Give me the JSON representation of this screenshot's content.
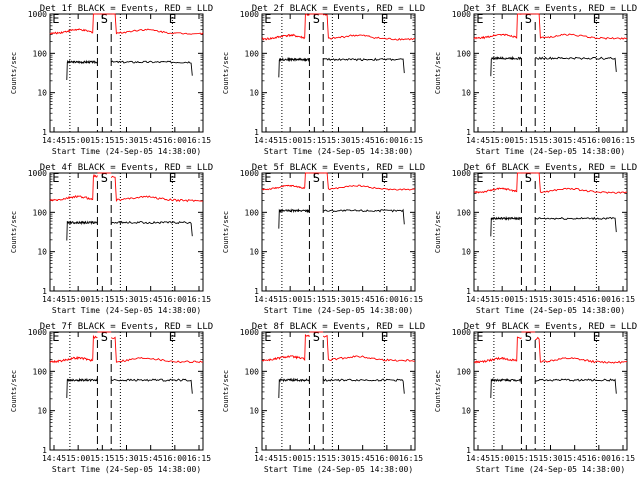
{
  "chart_data": [
    {
      "type": "line",
      "title": "Det 1f BLACK = Events, RED = LLD",
      "ylabel": "Counts/sec",
      "xlabel": "Start Time (24-Sep-05 14:38:00)",
      "yscale": "log",
      "ylim": [
        1,
        1000
      ],
      "yticks": [
        "1",
        "10",
        "100",
        "1000"
      ],
      "xticks": [
        "14:45",
        "15:00",
        "15:15",
        "15:30",
        "15:45",
        "16:00",
        "16:15"
      ],
      "markers": {
        "start": "S",
        "end": "E"
      },
      "series": [
        {
          "name": "Events",
          "color": "#000000",
          "baseline": 60,
          "jitter": 0.06
        },
        {
          "name": "LLD",
          "color": "#ff0000",
          "baseline": 320,
          "jitter": 0.05
        }
      ]
    },
    {
      "type": "line",
      "title": "Det 2f BLACK = Events, RED = LLD",
      "ylabel": "Counts/sec",
      "xlabel": "Start Time (24-Sep-05 14:38:00)",
      "yscale": "log",
      "ylim": [
        1,
        1000
      ],
      "yticks": [
        "1",
        "10",
        "100",
        "1000"
      ],
      "xticks": [
        "14:45",
        "15:00",
        "15:15",
        "15:30",
        "15:45",
        "16:00",
        "16:15"
      ],
      "markers": {
        "start": "S",
        "end": "E"
      },
      "series": [
        {
          "name": "Events",
          "color": "#000000",
          "baseline": 70,
          "jitter": 0.06
        },
        {
          "name": "LLD",
          "color": "#ff0000",
          "baseline": 230,
          "jitter": 0.06
        }
      ]
    },
    {
      "type": "line",
      "title": "Det 3f BLACK = Events, RED = LLD",
      "ylabel": "Counts/sec",
      "xlabel": "Start Time (24-Sep-05 14:38:00)",
      "yscale": "log",
      "ylim": [
        1,
        1000
      ],
      "yticks": [
        "1",
        "10",
        "100",
        "1000"
      ],
      "xticks": [
        "14:45",
        "15:00",
        "15:15",
        "15:30",
        "15:45",
        "16:00",
        "16:15"
      ],
      "markers": {
        "start": "S",
        "end": "E"
      },
      "series": [
        {
          "name": "Events",
          "color": "#000000",
          "baseline": 75,
          "jitter": 0.06
        },
        {
          "name": "LLD",
          "color": "#ff0000",
          "baseline": 240,
          "jitter": 0.05
        }
      ]
    },
    {
      "type": "line",
      "title": "Det 4f BLACK = Events, RED = LLD",
      "ylabel": "Counts/sec",
      "xlabel": "Start Time (24-Sep-05 14:38:00)",
      "yscale": "log",
      "ylim": [
        1,
        1000
      ],
      "yticks": [
        "1",
        "10",
        "100",
        "1000"
      ],
      "xticks": [
        "14:45",
        "15:00",
        "15:15",
        "15:30",
        "15:45",
        "16:00",
        "16:15"
      ],
      "markers": {
        "start": "S",
        "end": "E"
      },
      "series": [
        {
          "name": "Events",
          "color": "#000000",
          "baseline": 55,
          "jitter": 0.06
        },
        {
          "name": "LLD",
          "color": "#ff0000",
          "baseline": 200,
          "jitter": 0.06
        }
      ]
    },
    {
      "type": "line",
      "title": "Det 5f BLACK = Events, RED = LLD",
      "ylabel": "Counts/sec",
      "xlabel": "Start Time (24-Sep-05 14:38:00)",
      "yscale": "log",
      "ylim": [
        1,
        1000
      ],
      "yticks": [
        "1",
        "10",
        "100",
        "1000"
      ],
      "xticks": [
        "14:45",
        "15:00",
        "15:15",
        "15:30",
        "15:45",
        "16:00",
        "16:15"
      ],
      "markers": {
        "start": "S",
        "end": "E"
      },
      "series": [
        {
          "name": "Events",
          "color": "#000000",
          "baseline": 110,
          "jitter": 0.06
        },
        {
          "name": "LLD",
          "color": "#ff0000",
          "baseline": 380,
          "jitter": 0.04
        }
      ]
    },
    {
      "type": "line",
      "title": "Det 6f BLACK = Events, RED = LLD",
      "ylabel": "Counts/sec",
      "xlabel": "Start Time (24-Sep-05 14:38:00)",
      "yscale": "log",
      "ylim": [
        1,
        1000
      ],
      "yticks": [
        "1",
        "10",
        "100",
        "1000"
      ],
      "xticks": [
        "14:45",
        "15:00",
        "15:15",
        "15:30",
        "15:45",
        "16:00",
        "16:15"
      ],
      "markers": {
        "start": "S",
        "end": "E"
      },
      "series": [
        {
          "name": "Events",
          "color": "#000000",
          "baseline": 70,
          "jitter": 0.06
        },
        {
          "name": "LLD",
          "color": "#ff0000",
          "baseline": 320,
          "jitter": 0.05
        }
      ]
    },
    {
      "type": "line",
      "title": "Det 7f BLACK = Events, RED = LLD",
      "ylabel": "Counts/sec",
      "xlabel": "Start Time (24-Sep-05 14:38:00)",
      "yscale": "log",
      "ylim": [
        1,
        1000
      ],
      "yticks": [
        "1",
        "10",
        "100",
        "1000"
      ],
      "xticks": [
        "14:45",
        "15:00",
        "15:15",
        "15:30",
        "15:45",
        "16:00",
        "16:15"
      ],
      "markers": {
        "start": "S",
        "end": "E"
      },
      "series": [
        {
          "name": "Events",
          "color": "#000000",
          "baseline": 60,
          "jitter": 0.06
        },
        {
          "name": "LLD",
          "color": "#ff0000",
          "baseline": 175,
          "jitter": 0.06
        }
      ]
    },
    {
      "type": "line",
      "title": "Det 8f BLACK = Events, RED = LLD",
      "ylabel": "Counts/sec",
      "xlabel": "Start Time (24-Sep-05 14:38:00)",
      "yscale": "log",
      "ylim": [
        1,
        1000
      ],
      "yticks": [
        "1",
        "10",
        "100",
        "1000"
      ],
      "xticks": [
        "14:45",
        "15:00",
        "15:15",
        "15:30",
        "15:45",
        "16:00",
        "16:15"
      ],
      "markers": {
        "start": "S",
        "end": "E"
      },
      "series": [
        {
          "name": "Events",
          "color": "#000000",
          "baseline": 60,
          "jitter": 0.06
        },
        {
          "name": "LLD",
          "color": "#ff0000",
          "baseline": 190,
          "jitter": 0.06
        }
      ]
    },
    {
      "type": "line",
      "title": "Det 9f BLACK = Events, RED = LLD",
      "ylabel": "Counts/sec",
      "xlabel": "Start Time (24-Sep-05 14:38:00)",
      "yscale": "log",
      "ylim": [
        1,
        1000
      ],
      "yticks": [
        "1",
        "10",
        "100",
        "1000"
      ],
      "xticks": [
        "14:45",
        "15:00",
        "15:15",
        "15:30",
        "15:45",
        "16:00",
        "16:15"
      ],
      "markers": {
        "start": "S",
        "end": "E"
      },
      "series": [
        {
          "name": "Events",
          "color": "#000000",
          "baseline": 60,
          "jitter": 0.06
        },
        {
          "name": "LLD",
          "color": "#ff0000",
          "baseline": 170,
          "jitter": 0.06
        }
      ]
    }
  ]
}
